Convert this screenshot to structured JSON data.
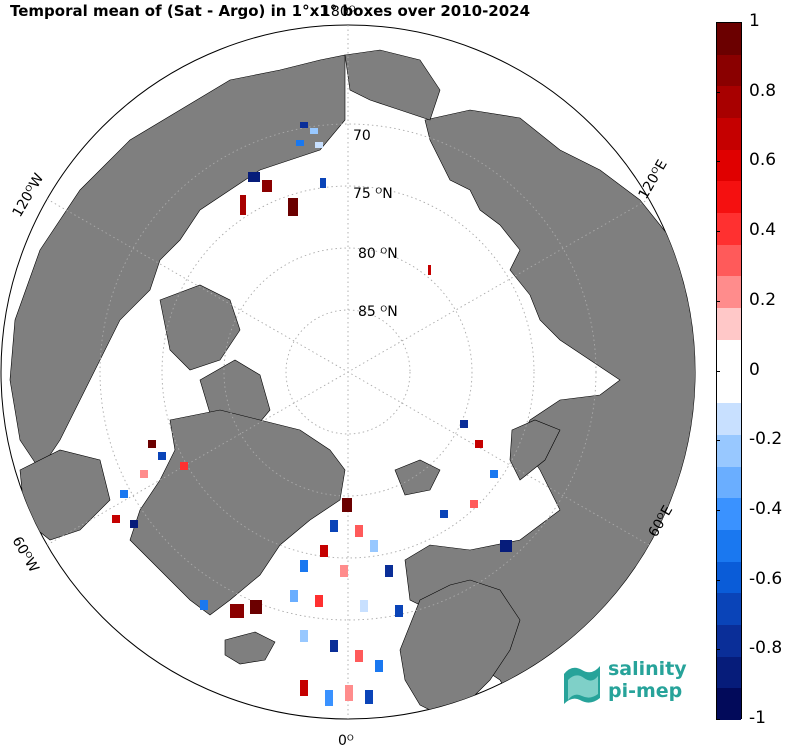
{
  "title": "Temporal mean of (Sat - Argo) in 1°x1° boxes over 2010-2024",
  "map": {
    "projection": "north-polar-stereographic",
    "land_color": "#7f7f7f",
    "ocean_color": "#ffffff",
    "lat_labels": [
      "70",
      "75 ᴼN",
      "80 ᴼN",
      "85 ᴼN"
    ],
    "lon_labels": {
      "top": "180ᴼ",
      "bottom": "0ᴼ",
      "left_upper": "120ᴼW",
      "left_lower": "60ᴼW",
      "right_upper": "120ᴼE",
      "right_lower": "60ᴼE"
    }
  },
  "colorbar": {
    "min": -1,
    "max": 1,
    "tick_labels": [
      "1",
      "0.8",
      "0.6",
      "0.4",
      "0.2",
      "0",
      "-0.2",
      "-0.4",
      "-0.6",
      "-0.8",
      "-1"
    ],
    "colors": [
      "#6b0000",
      "#8a0000",
      "#a80000",
      "#c50000",
      "#e00000",
      "#f51010",
      "#ff3030",
      "#ff5a5a",
      "#ff8c8c",
      "#ffc8c8",
      "#ffffff",
      "#ffffff",
      "#c8e0ff",
      "#98c8ff",
      "#6aaeff",
      "#3a92ff",
      "#1a78f0",
      "#0a5cd8",
      "#0a44b8",
      "#0a2e98",
      "#061c7a",
      "#020a5a"
    ]
  },
  "logo": {
    "line1": "salinity",
    "line2": "pi-mep"
  }
}
